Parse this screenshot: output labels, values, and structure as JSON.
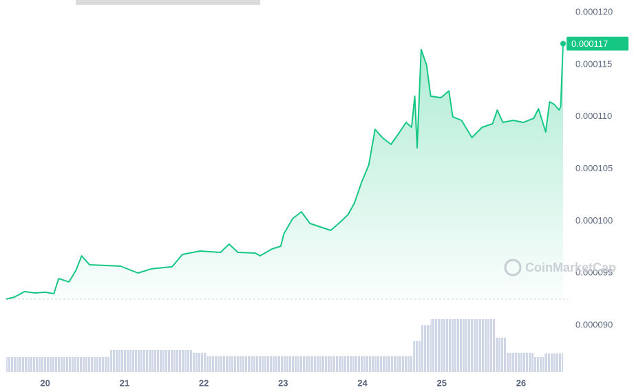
{
  "chart_data": {
    "type": "area",
    "x": [
      19.51,
      19.61,
      19.74,
      19.87,
      20.0,
      20.11,
      20.17,
      20.3,
      20.39,
      20.46,
      20.56,
      20.74,
      20.95,
      21.17,
      21.34,
      21.6,
      21.73,
      21.95,
      22.21,
      22.32,
      22.43,
      22.65,
      22.71,
      22.86,
      22.97,
      23.01,
      23.12,
      23.23,
      23.34,
      23.47,
      23.6,
      23.73,
      23.82,
      23.9,
      23.99,
      24.08,
      24.16,
      24.25,
      24.36,
      24.47,
      24.55,
      24.62,
      24.66,
      24.69,
      24.74,
      24.81,
      24.86,
      24.99,
      25.09,
      25.14,
      25.25,
      25.38,
      25.51,
      25.64,
      25.7,
      25.77,
      25.9,
      26.03,
      26.16,
      26.22,
      26.31,
      26.36,
      26.42,
      26.48,
      26.5,
      26.53
    ],
    "values": [
      9.251e-05,
      9.27e-05,
      9.323e-05,
      9.31e-05,
      9.317e-05,
      9.303e-05,
      9.448e-05,
      9.416e-05,
      9.528e-05,
      9.666e-05,
      9.58e-05,
      9.574e-05,
      9.567e-05,
      9.501e-05,
      9.541e-05,
      9.561e-05,
      9.679e-05,
      9.712e-05,
      9.699e-05,
      9.778e-05,
      9.699e-05,
      9.692e-05,
      9.666e-05,
      9.732e-05,
      9.758e-05,
      9.877e-05,
      0.00010022,
      0.00010088,
      9.976e-05,
      9.943e-05,
      9.91e-05,
      9.996e-05,
      0.00010062,
      0.00010174,
      0.00010372,
      0.00010536,
      0.00010879,
      0.000108,
      0.00010734,
      0.00010853,
      0.00010945,
      0.00010899,
      0.00011196,
      0.00010701,
      0.00011644,
      0.00011492,
      0.00011196,
      0.00011182,
      0.00011248,
      0.00010998,
      0.00010965,
      0.000108,
      0.00010899,
      0.00010932,
      0.00011064,
      0.00010945,
      0.00010965,
      0.00010945,
      0.00010985,
      0.00011077,
      0.00010853,
      0.00011143,
      0.00011117,
      0.00011064,
      0.00011097,
      0.000117
    ],
    "color": "#16c784",
    "xlim": [
      19.5,
      26.53
    ],
    "xticks": [
      20,
      21,
      22,
      23,
      24,
      25,
      26
    ],
    "ylim": [
      9e-05,
      0.00012
    ],
    "yticks": [
      {
        "value": 9e-05,
        "label": "0.000090"
      },
      {
        "value": 9.5e-05,
        "label": "0.000095"
      },
      {
        "value": 0.0001,
        "label": "0.000100"
      },
      {
        "value": 0.000105,
        "label": "0.000105"
      },
      {
        "value": 0.00011,
        "label": "0.000110"
      },
      {
        "value": 0.000115,
        "label": "0.000115"
      },
      {
        "value": 0.00012,
        "label": "0.000120"
      }
    ],
    "last_value_label": "0.000117",
    "watermark": "CoinMarketCap",
    "volume": {
      "bins": [
        19.51,
        20.82,
        21.86,
        22.04,
        24.64,
        24.74,
        24.86,
        25.68,
        25.81,
        26.16,
        26.29,
        26.53
      ],
      "values": [
        22,
        32,
        28,
        23,
        45,
        68,
        77,
        50,
        28,
        22,
        27
      ],
      "ylim": [
        0,
        100
      ],
      "color": "#cfd6e8"
    }
  }
}
